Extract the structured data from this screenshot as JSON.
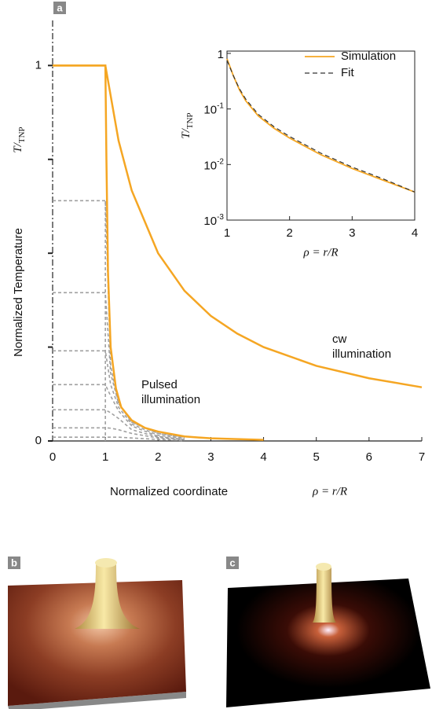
{
  "panel_labels": [
    "a",
    "b",
    "c"
  ],
  "chart_data": [
    {
      "type": "line",
      "xlabel": "Normalized coordinate",
      "xlabel_math": "ρ = r/R",
      "ylabel": "Normalized Temperature",
      "ylabel_math": "T/TNP",
      "xlim": [
        0,
        7
      ],
      "ylim": [
        0,
        1.12
      ],
      "xticks": [
        0,
        1,
        2,
        3,
        4,
        5,
        6,
        7
      ],
      "yticks": [
        0,
        1
      ],
      "yminor_ticks": [
        0.25,
        0.5,
        0.75
      ],
      "series": [
        {
          "color": "#f5a623",
          "x": [
            0,
            1,
            1.02,
            1.05,
            1.1,
            1.2,
            1.3,
            1.5,
            1.75,
            2,
            2.5,
            3,
            3.5,
            4
          ],
          "values": [
            1,
            1,
            0.75,
            0.45,
            0.25,
            0.14,
            0.09,
            0.055,
            0.035,
            0.025,
            0.012,
            0.007,
            0.005,
            0.003
          ]
        },
        {
          "color": "#f5a623",
          "x": [
            0,
            1,
            1.25,
            1.5,
            2,
            2.5,
            3,
            3.5,
            4,
            5,
            6,
            7
          ],
          "values": [
            1,
            1,
            0.8,
            0.667,
            0.5,
            0.4,
            0.333,
            0.286,
            0.25,
            0.2,
            0.167,
            0.143
          ]
        }
      ],
      "time_steps": {
        "color": "#a0a0a0",
        "series": [
          {
            "x": [
              0,
              1,
              1.1,
              1.25,
              1.5,
              2,
              2.5
            ],
            "values": [
              0.64,
              0.64,
              0.2,
              0.1,
              0.05,
              0.02,
              0.01
            ]
          },
          {
            "x": [
              0,
              1,
              1.1,
              1.25,
              1.5,
              2,
              2.5
            ],
            "values": [
              0.395,
              0.395,
              0.18,
              0.1,
              0.05,
              0.02,
              0.008
            ]
          },
          {
            "x": [
              0,
              1,
              1.1,
              1.25,
              1.5,
              2,
              2.5
            ],
            "values": [
              0.24,
              0.24,
              0.15,
              0.09,
              0.045,
              0.015,
              0.006
            ]
          },
          {
            "x": [
              0,
              1,
              1.1,
              1.25,
              1.5,
              2,
              2.5
            ],
            "values": [
              0.15,
              0.15,
              0.12,
              0.08,
              0.04,
              0.012,
              0.004
            ]
          },
          {
            "x": [
              0,
              1,
              1.1,
              1.25,
              1.5,
              2,
              2.5
            ],
            "values": [
              0.083,
              0.083,
              0.075,
              0.06,
              0.03,
              0.01,
              0.003
            ]
          },
          {
            "x": [
              0,
              1,
              1.1,
              1.25,
              1.5,
              2,
              2.5
            ],
            "values": [
              0.035,
              0.035,
              0.034,
              0.03,
              0.02,
              0.008,
              0.002
            ]
          },
          {
            "x": [
              0,
              1,
              1.1,
              1.25,
              1.5,
              2,
              2.5
            ],
            "values": [
              0.01,
              0.01,
              0.01,
              0.01,
              0.008,
              0.004,
              0.001
            ]
          }
        ]
      },
      "annotations": [
        [
          "Pulsed",
          "illumination"
        ],
        [
          "cw",
          "illumination"
        ]
      ]
    },
    {
      "type": "line",
      "ylog": true,
      "xlabel": "ρ = r/R",
      "ylabel": "T/TNP",
      "xlim": [
        1,
        4
      ],
      "ylim": [
        0.001,
        1.1
      ],
      "xticks": [
        1,
        2,
        3,
        4
      ],
      "yticks": [
        {
          "value": 0.001,
          "label": "10-3"
        },
        {
          "value": 0.01,
          "label": "10-2"
        },
        {
          "value": 0.1,
          "label": "10-1"
        },
        1
      ],
      "legend": "upper right",
      "series": [
        {
          "name": "Simulation",
          "color": "#f5a623",
          "style": "solid",
          "x": [
            1,
            1.1,
            1.2,
            1.3,
            1.5,
            1.75,
            2,
            2.5,
            3,
            3.5,
            4
          ],
          "values": [
            0.8,
            0.4,
            0.22,
            0.14,
            0.075,
            0.045,
            0.03,
            0.015,
            0.0085,
            0.0052,
            0.0032
          ]
        },
        {
          "name": "Fit",
          "color": "#333333",
          "style": "dashed",
          "x": [
            1,
            1.1,
            1.2,
            1.3,
            1.5,
            1.75,
            2,
            2.5,
            3,
            3.5,
            4
          ],
          "values": [
            0.75,
            0.4,
            0.23,
            0.15,
            0.08,
            0.048,
            0.032,
            0.016,
            0.009,
            0.0055,
            0.0032
          ]
        }
      ]
    }
  ]
}
